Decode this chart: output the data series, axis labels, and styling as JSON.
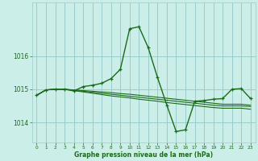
{
  "title": "Graphe pression niveau de la mer (hPa)",
  "background_color": "#cceee8",
  "grid_color": "#99cccc",
  "line_color": "#1a6b1a",
  "xlim": [
    -0.5,
    23.5
  ],
  "ylim": [
    1013.4,
    1017.6
  ],
  "yticks": [
    1014,
    1015,
    1016
  ],
  "xticks": [
    0,
    1,
    2,
    3,
    4,
    5,
    6,
    7,
    8,
    9,
    10,
    11,
    12,
    13,
    14,
    15,
    16,
    17,
    18,
    19,
    20,
    21,
    22,
    23
  ],
  "main_series": [
    1014.82,
    1014.98,
    1015.0,
    1015.0,
    1014.95,
    1015.08,
    1015.12,
    1015.18,
    1015.32,
    1015.6,
    1016.82,
    1016.88,
    1016.25,
    1015.35,
    1014.52,
    1013.73,
    1013.78,
    1014.64,
    1014.66,
    1014.7,
    1014.72,
    1015.0,
    1015.02,
    1014.72
  ],
  "flat1": [
    1014.82,
    1014.98,
    1015.0,
    1015.0,
    1014.98,
    1014.96,
    1014.94,
    1014.92,
    1014.9,
    1014.87,
    1014.85,
    1014.82,
    1014.79,
    1014.76,
    1014.73,
    1014.7,
    1014.67,
    1014.64,
    1014.61,
    1014.58,
    1014.55,
    1014.55,
    1014.55,
    1014.52
  ],
  "flat2": [
    1014.82,
    1014.98,
    1015.0,
    1015.0,
    1014.97,
    1014.94,
    1014.91,
    1014.88,
    1014.85,
    1014.82,
    1014.79,
    1014.76,
    1014.73,
    1014.7,
    1014.67,
    1014.64,
    1014.61,
    1014.58,
    1014.55,
    1014.52,
    1014.5,
    1014.5,
    1014.5,
    1014.48
  ],
  "flat3": [
    1014.82,
    1014.98,
    1015.0,
    1015.0,
    1014.96,
    1014.92,
    1014.88,
    1014.84,
    1014.8,
    1014.77,
    1014.74,
    1014.7,
    1014.67,
    1014.64,
    1014.6,
    1014.57,
    1014.54,
    1014.51,
    1014.48,
    1014.45,
    1014.43,
    1014.43,
    1014.43,
    1014.4
  ]
}
